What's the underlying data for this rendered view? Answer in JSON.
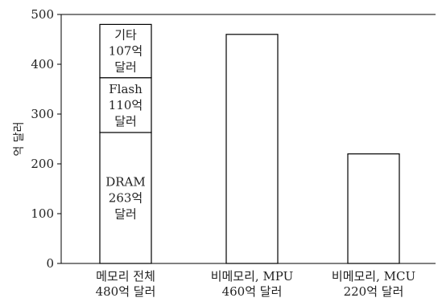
{
  "chart_data": {
    "type": "bar",
    "ylabel": "억 달러",
    "ylim": [
      0,
      500
    ],
    "y_ticks": [
      0,
      100,
      200,
      300,
      400,
      500
    ],
    "grid": false,
    "bars": [
      {
        "label_lines": [
          "메모리 전체",
          "480억 달러"
        ],
        "total": 480,
        "segments": [
          {
            "name": "DRAM",
            "value": 263,
            "label_lines": [
              "DRAM",
              "263억",
              "달러"
            ]
          },
          {
            "name": "Flash",
            "value": 110,
            "label_lines": [
              "Flash",
              "110억",
              "달러"
            ]
          },
          {
            "name": "기타",
            "value": 107,
            "label_lines": [
              "기타",
              "107억",
              "달러"
            ]
          }
        ]
      },
      {
        "label_lines": [
          "비메모리, MPU",
          "460억 달러"
        ],
        "total": 460,
        "segments": [
          {
            "name": "MPU",
            "value": 460,
            "label_lines": []
          }
        ]
      },
      {
        "label_lines": [
          "비메모리, MCU",
          "220억 달러"
        ],
        "total": 220,
        "segments": [
          {
            "name": "MCU",
            "value": 220,
            "label_lines": []
          }
        ]
      }
    ]
  },
  "colors": {
    "bar_fill": "#ffffff",
    "stroke": "#000000",
    "text": "#222222"
  }
}
